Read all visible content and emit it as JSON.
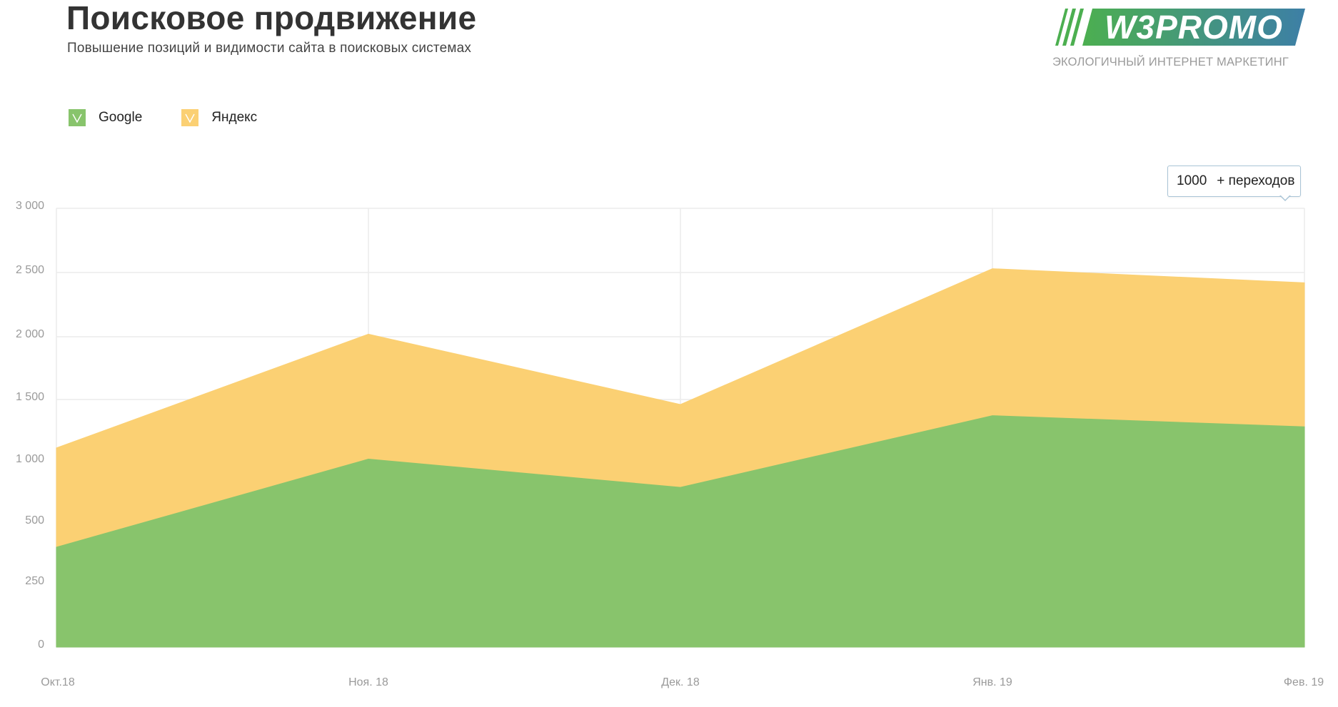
{
  "header": {
    "title": "Поисковое продвижение",
    "subtitle": "Повышение позиций и видимости сайта в поисковых системах"
  },
  "logo": {
    "text": "W3PROMO",
    "tagline": "ЭКОЛОГИЧНЫЙ ИНТЕРНЕТ МАРКЕТИНГ",
    "gradient_start": "#4caf50",
    "gradient_end": "#3d7fa6"
  },
  "legend": {
    "items": [
      {
        "label": "Google",
        "color": "#88c46c",
        "checked": true,
        "icon": "checkbox-check-icon"
      },
      {
        "label": "Яндекс",
        "color": "#fbd073",
        "checked": true,
        "icon": "checkbox-check-icon"
      }
    ]
  },
  "tooltip": {
    "value": "1000",
    "text": "+ переходов"
  },
  "chart_data": {
    "type": "area",
    "stacked": true,
    "title": "Поисковое продвижение",
    "subtitle": "Повышение позиций и видимости сайта в поисковых системах",
    "xlabel": "",
    "ylabel": "",
    "categories": [
      "Окт.18",
      "Ноя. 18",
      "Дек. 18",
      "Янв. 19",
      "Фев. 19"
    ],
    "series": [
      {
        "name": "Google",
        "color": "#88c46c",
        "values": [
          400,
          1020,
          790,
          1370,
          1280
        ]
      },
      {
        "name": "Яндекс",
        "color": "#fbd073",
        "values": [
          710,
          1000,
          670,
          1160,
          1140
        ]
      }
    ],
    "stack_totals": [
      1110,
      2020,
      1460,
      2530,
      2420
    ],
    "yticks": [
      0,
      250,
      500,
      1000,
      1500,
      2000,
      2500,
      3000
    ],
    "ytick_labels": [
      "0",
      "250",
      "500",
      "1 000",
      "1 500",
      "2 000",
      "2 500",
      "3 000"
    ],
    "ylim": [
      0,
      3000
    ],
    "grid": true,
    "legend_position": "top-left",
    "annotation": "1000 + переходов"
  }
}
